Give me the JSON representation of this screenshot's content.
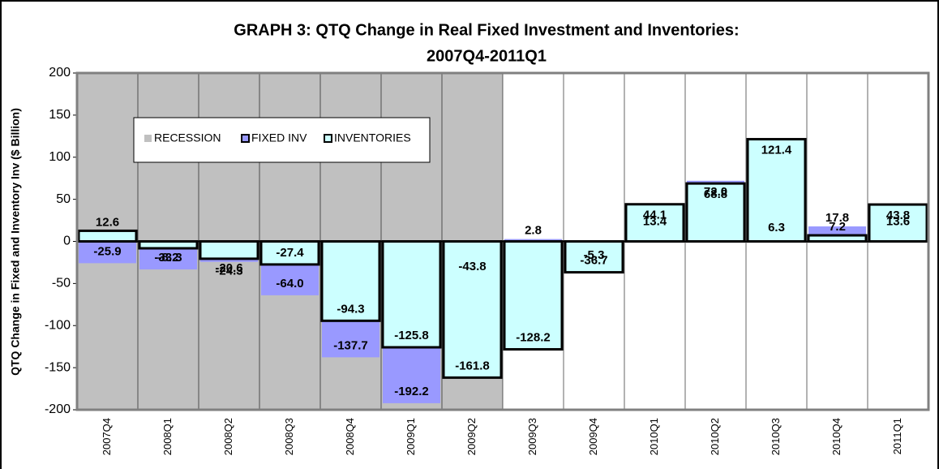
{
  "chart_data": {
    "type": "bar",
    "title": "GRAPH 3: QTQ Change in Real Fixed Investment and Inventories:",
    "subtitle": "2007Q4-2011Q1",
    "y_label": "QTQ Change in Fixed and Inventory Inv ($ Billion)",
    "categories": [
      "2007Q4",
      "2008Q1",
      "2008Q2",
      "2008Q3",
      "2008Q4",
      "2009Q1",
      "2009Q2",
      "2009Q3",
      "2009Q4",
      "2010Q1",
      "2010Q2",
      "2010Q3",
      "2010Q4",
      "2011Q1"
    ],
    "recession": {
      "name": "RECESSION",
      "color": "#c0c0c0",
      "from": "2007Q4",
      "to": "2009Q2"
    },
    "series": [
      {
        "name": "FIXED INV",
        "color": "#9999ff",
        "values": [
          -25.9,
          -33.3,
          -24.3,
          -64.0,
          -137.7,
          -192.2,
          -43.8,
          2.8,
          -5.3,
          13.4,
          72.0,
          6.3,
          17.8,
          13.6
        ],
        "value_labels": [
          "-25.9",
          "-33.3",
          "-24.3",
          "-64.0",
          "-137.7",
          "-192.2",
          "-43.8",
          "2.8",
          "-5.3",
          "13.4",
          "72.0",
          "6.3",
          "17.8",
          "13.6"
        ]
      },
      {
        "name": "INVENTORIES",
        "color": "#ccffff",
        "values": [
          12.6,
          -8.2,
          -20.6,
          -27.4,
          -94.3,
          -125.8,
          -161.8,
          -128.2,
          -36.7,
          44.1,
          68.8,
          121.4,
          7.2,
          43.8
        ],
        "value_labels": [
          "12.6",
          "-8.2",
          "-20.6",
          "-27.4",
          "-94.3",
          "-125.8",
          "-161.8",
          "-128.2",
          "-36.7",
          "44.1",
          "68.8",
          "121.4",
          "7.2",
          "43.8"
        ]
      }
    ],
    "ylim": [
      -200,
      200
    ],
    "yticks": [
      -200,
      -150,
      -100,
      -50,
      0,
      50,
      100,
      150,
      200
    ],
    "grid": "vertical"
  }
}
